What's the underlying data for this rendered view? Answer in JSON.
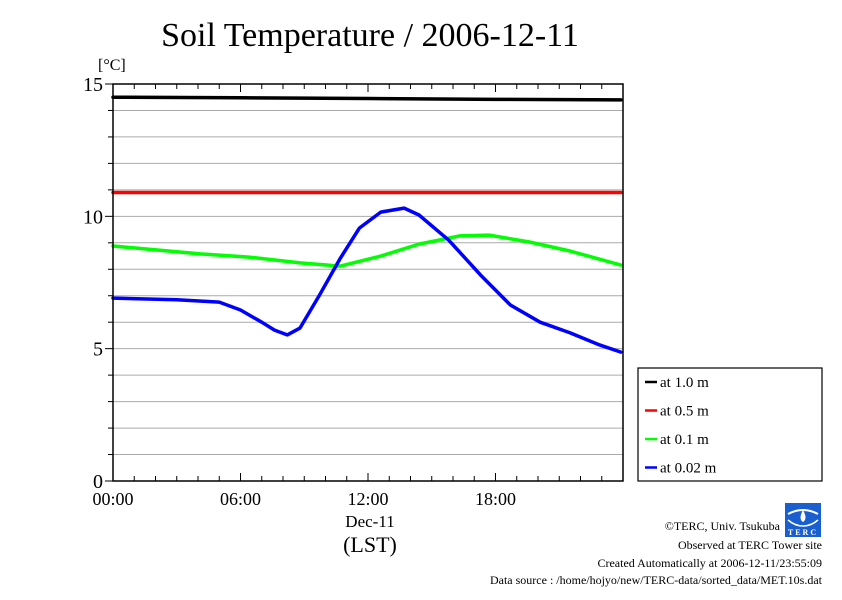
{
  "chart_data": {
    "type": "line",
    "title": "Soil Temperature / 2006-12-11",
    "ylabel": "[°C]",
    "xlabel": "(LST)",
    "date_label": "Dec-11",
    "ylim": [
      0,
      15
    ],
    "xlim_hours": [
      0,
      24
    ],
    "yticks": [
      {
        "v": 0,
        "label": "0"
      },
      {
        "v": 5,
        "label": "5"
      },
      {
        "v": 10,
        "label": "10"
      },
      {
        "v": 15,
        "label": "15"
      }
    ],
    "xticks": [
      {
        "h": 0,
        "label": "00:00"
      },
      {
        "h": 6,
        "label": "06:00"
      },
      {
        "h": 12,
        "label": "12:00"
      },
      {
        "h": 18,
        "label": "18:00"
      }
    ],
    "grid": true,
    "legend_position": "bottom-right-outside",
    "series": [
      {
        "name": "at 1.0 m",
        "color": "#000000",
        "x": [
          0,
          6,
          12,
          18,
          23.9
        ],
        "y": [
          14.5,
          14.48,
          14.45,
          14.42,
          14.4
        ]
      },
      {
        "name": "at 0.5 m",
        "color": "#ff0000",
        "x": [
          0,
          6,
          12,
          18,
          23.9
        ],
        "y": [
          10.9,
          10.9,
          10.9,
          10.9,
          10.9
        ]
      },
      {
        "name": "at 0.1 m",
        "color": "#00ff00",
        "x": [
          0,
          4.1,
          6.4,
          8.8,
          10.7,
          12.6,
          14.4,
          16.3,
          17.7,
          19.6,
          21.5,
          23.9
        ],
        "y": [
          8.88,
          8.58,
          8.46,
          8.24,
          8.12,
          8.5,
          8.95,
          9.26,
          9.29,
          9.03,
          8.69,
          8.16
        ]
      },
      {
        "name": "at 0.02 m",
        "color": "#0000ff",
        "x": [
          0,
          3,
          5,
          6,
          7,
          7.6,
          8.2,
          8.8,
          9.7,
          10.7,
          11.6,
          12.6,
          13.7,
          14.4,
          15.8,
          17.3,
          18.7,
          20.1,
          21.5,
          22.9,
          23.9
        ],
        "y": [
          6.91,
          6.85,
          6.76,
          6.46,
          6.0,
          5.7,
          5.52,
          5.78,
          7.0,
          8.42,
          9.56,
          10.16,
          10.31,
          10.05,
          9.1,
          7.78,
          6.65,
          6.0,
          5.6,
          5.14,
          4.87
        ]
      }
    ]
  },
  "credits": {
    "copyright": "©TERC, Univ. Tsukuba",
    "observed": "Observed at TERC Tower site",
    "created": "Created Automatically at 2006-12-11/23:55:09",
    "source": "Data source : /home/hojyo/new/TERC-data/sorted_data/MET.10s.dat",
    "logo_text": "TERC"
  }
}
